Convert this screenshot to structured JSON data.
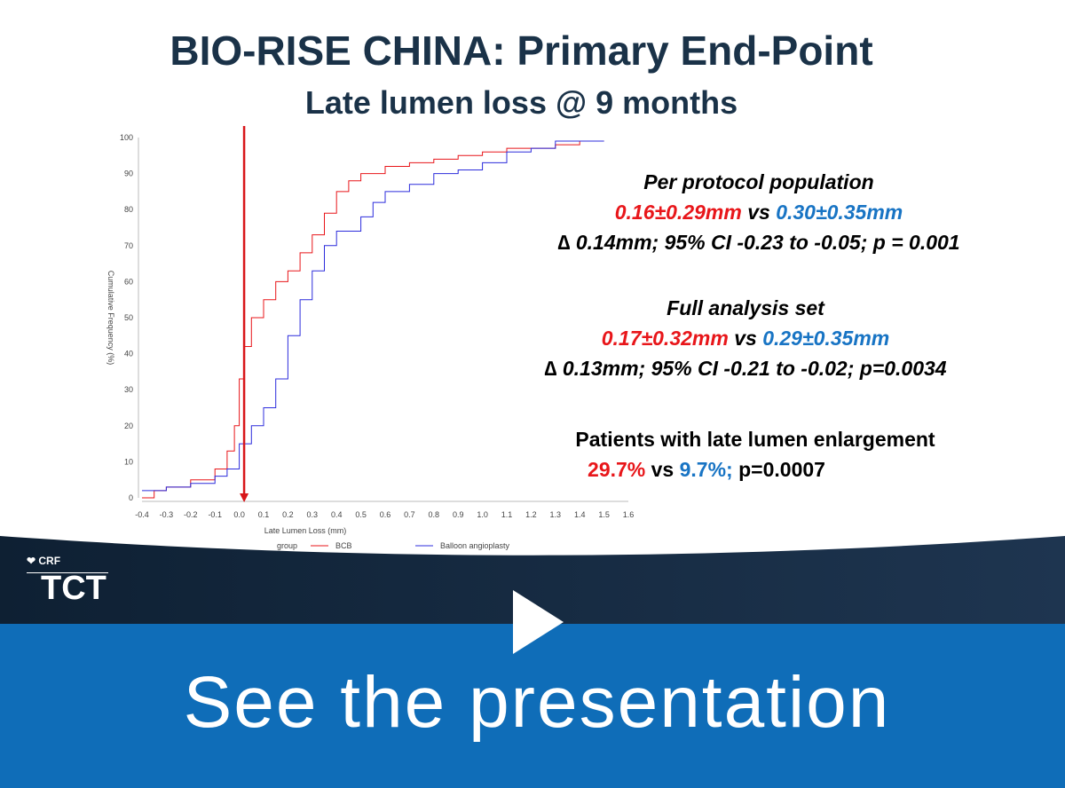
{
  "slide": {
    "title": "BIO-RISE CHINA: Primary End-Point",
    "subtitle": "Late lumen loss @ 9 months",
    "per_protocol": {
      "heading": "Per protocol population",
      "red_value": "0.16±0.29mm",
      "vs": "vs",
      "blue_value": "0.30±0.35mm",
      "stats": "∆ 0.14mm; 95% CI -0.23 to -0.05; p = 0.001"
    },
    "full_analysis": {
      "heading": "Full analysis set",
      "red_value": "0.17±0.32mm",
      "vs": "vs",
      "blue_value": "0.29±0.35mm",
      "stats": "∆ 0.13mm; 95% CI -0.21 to -0.02; p=0.0034"
    },
    "enlargement": {
      "heading": "Patients with late lumen enlargement",
      "red_value": "29.7%",
      "vs": "vs",
      "blue_value": "9.7%;",
      "p": "p=0.0007"
    }
  },
  "chart_data": {
    "type": "line",
    "xlabel": "Late Lumen Loss (mm)",
    "ylabel": "Cumulative Frequency (%)",
    "xlim": [
      -0.4,
      1.6
    ],
    "ylim": [
      0,
      100
    ],
    "x_ticks": [
      "-0.4",
      "-0.3",
      "-0.2",
      "-0.1",
      "0.0",
      "0.1",
      "0.2",
      "0.3",
      "0.4",
      "0.5",
      "0.6",
      "0.7",
      "0.8",
      "0.9",
      "1.0",
      "1.1",
      "1.2",
      "1.3",
      "1.4",
      "1.5",
      "1.6"
    ],
    "y_ticks": [
      "0",
      "10",
      "20",
      "30",
      "40",
      "50",
      "60",
      "70",
      "80",
      "90",
      "100"
    ],
    "legend_title": "group",
    "reference_line_x": 0.02,
    "series": [
      {
        "name": "BCB",
        "color": "#e8161a",
        "x": [
          -0.4,
          -0.35,
          -0.3,
          -0.2,
          -0.1,
          -0.05,
          -0.02,
          0.0,
          0.02,
          0.05,
          0.1,
          0.15,
          0.2,
          0.25,
          0.3,
          0.35,
          0.4,
          0.45,
          0.5,
          0.6,
          0.7,
          0.8,
          0.9,
          1.0,
          1.1,
          1.2,
          1.3,
          1.4,
          1.5
        ],
        "y": [
          0,
          2,
          3,
          5,
          8,
          13,
          20,
          33,
          42,
          50,
          55,
          60,
          63,
          68,
          73,
          79,
          85,
          88,
          90,
          92,
          93,
          94,
          95,
          96,
          97,
          97,
          98,
          99,
          99
        ]
      },
      {
        "name": "Balloon angioplasty",
        "color": "#2c2cdc",
        "x": [
          -0.4,
          -0.3,
          -0.2,
          -0.1,
          -0.05,
          0.0,
          0.05,
          0.1,
          0.15,
          0.2,
          0.25,
          0.3,
          0.35,
          0.4,
          0.45,
          0.5,
          0.55,
          0.6,
          0.7,
          0.8,
          0.9,
          1.0,
          1.1,
          1.2,
          1.3,
          1.4,
          1.5
        ],
        "y": [
          2,
          3,
          4,
          6,
          8,
          15,
          20,
          25,
          33,
          45,
          55,
          63,
          70,
          74,
          74,
          78,
          82,
          85,
          87,
          90,
          91,
          93,
          96,
          97,
          99,
          99,
          99
        ]
      }
    ]
  },
  "banner": {
    "text": "See the presentation",
    "crf": "CRF",
    "tct": "TCT"
  }
}
